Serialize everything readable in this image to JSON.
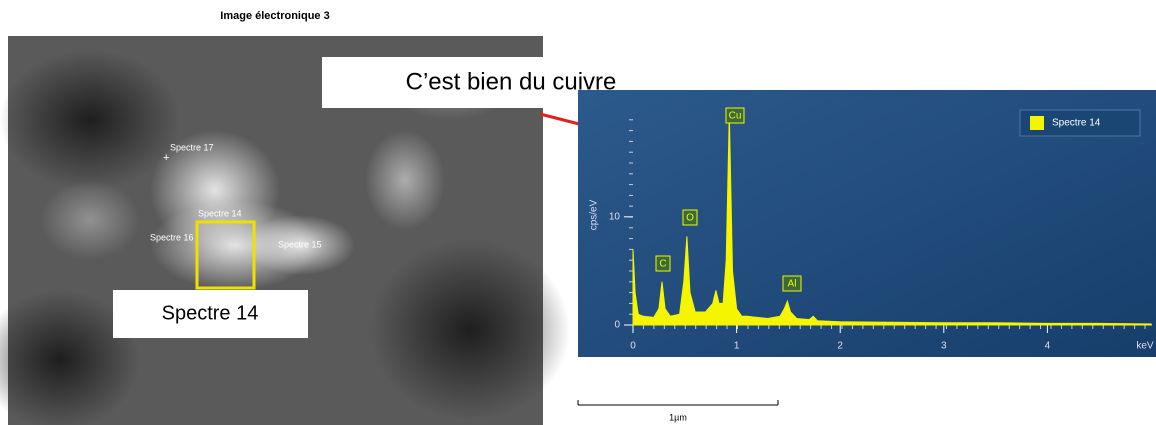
{
  "image": {
    "title": "Image électronique 3",
    "spot_labels": [
      "Spectre 17",
      "Spectre 14",
      "Spectre 16",
      "Spectre 15"
    ],
    "box_label": "Spectre 14",
    "scale_bar": "1µm"
  },
  "callout": "C’est bien du cuivre",
  "chart_data": {
    "type": "area",
    "x_label": "keV",
    "y_label": "cps/eV",
    "series": [
      {
        "name": "Spectre 14",
        "color": "#f5f500",
        "x": [
          0,
          0.02,
          0.05,
          0.1,
          0.2,
          0.25,
          0.28,
          0.31,
          0.36,
          0.45,
          0.49,
          0.52,
          0.55,
          0.6,
          0.7,
          0.77,
          0.8,
          0.83,
          0.87,
          0.9,
          0.93,
          0.96,
          1.0,
          1.05,
          1.1,
          1.2,
          1.3,
          1.42,
          1.46,
          1.49,
          1.52,
          1.58,
          1.7,
          1.74,
          1.78,
          2.0,
          2.5,
          3.0,
          3.5,
          4.0,
          4.5,
          5.0
        ],
        "values": [
          7,
          3,
          1,
          0.8,
          0.7,
          1.5,
          4,
          1.5,
          0.8,
          1,
          4,
          8.2,
          3,
          1.2,
          1.2,
          2,
          3.2,
          2,
          2,
          6,
          19.5,
          5,
          1.5,
          0.8,
          0.8,
          0.7,
          0.6,
          0.8,
          1.5,
          2.2,
          1.2,
          0.6,
          0.5,
          0.8,
          0.4,
          0.3,
          0.25,
          0.2,
          0.2,
          0.15,
          0.15,
          0.1
        ]
      }
    ],
    "peak_labels": [
      "C",
      "O",
      "Cu",
      "Al"
    ],
    "xlim": [
      0,
      5
    ],
    "ylim": [
      0,
      20.8
    ],
    "xticks": [
      0,
      1,
      2,
      3,
      4
    ],
    "yticks": [
      0,
      10
    ],
    "legend": "top-right"
  }
}
